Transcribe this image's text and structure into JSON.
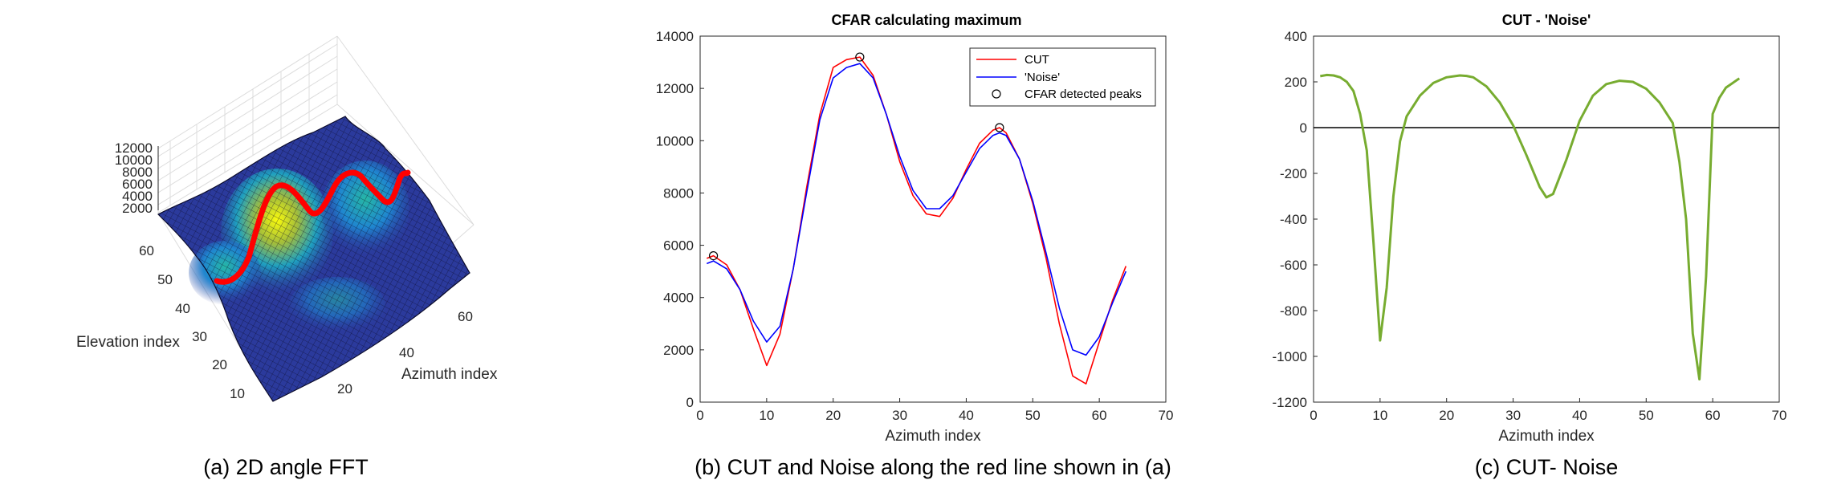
{
  "colors": {
    "cut": "#ff0000",
    "noise": "#0000ff",
    "diff": "#77ac30",
    "peak_marker": "#000000",
    "surface_low": "#352a87",
    "surface_mid": "#1fa0c0",
    "surface_high": "#f9fb0e",
    "red_line": "#ff0000"
  },
  "panel_a": {
    "caption": "(a) 2D angle FFT",
    "xlabel": "Azimuth index",
    "ylabel": "Elevation index",
    "z_ticks": [
      "12000",
      "10000",
      "8000",
      "6000",
      "4000",
      "2000"
    ],
    "y_ticks": [
      "60",
      "50",
      "40",
      "30",
      "20",
      "10"
    ],
    "x_ticks": [
      "20",
      "40",
      "60"
    ]
  },
  "panel_b": {
    "caption": "(b) CUT and Noise along the red line shown in (a)",
    "legend": {
      "cut": "CUT",
      "noise": "'Noise'",
      "peaks": "CFAR detected peaks"
    }
  },
  "panel_c": {
    "caption": "(c) CUT- Noise"
  },
  "chart_data": [
    {
      "type": "surface",
      "xlabel": "Azimuth index",
      "ylabel": "Elevation index",
      "x_ticks": [
        20,
        40,
        60
      ],
      "y_ticks": [
        10,
        20,
        30,
        40,
        50,
        60
      ],
      "z_ticks": [
        2000,
        4000,
        6000,
        8000,
        10000,
        12000
      ]
    },
    {
      "type": "line",
      "title": "CFAR calculating maximum",
      "xlabel": "Azimuth index",
      "ylabel": "",
      "xlim": [
        0,
        70
      ],
      "ylim": [
        0,
        14000
      ],
      "x_ticks": [
        0,
        10,
        20,
        30,
        40,
        50,
        60,
        70
      ],
      "y_ticks": [
        0,
        2000,
        4000,
        6000,
        8000,
        10000,
        12000,
        14000
      ],
      "legend_position": "top-right",
      "x": [
        1,
        2,
        4,
        6,
        8,
        10,
        12,
        14,
        16,
        18,
        20,
        22,
        24,
        26,
        28,
        30,
        32,
        34,
        36,
        38,
        40,
        42,
        44,
        45,
        46,
        48,
        50,
        52,
        54,
        56,
        58,
        60,
        62,
        64
      ],
      "series": [
        {
          "name": "CUT",
          "values": [
            5500,
            5600,
            5250,
            4300,
            2800,
            1400,
            2600,
            5100,
            8200,
            11000,
            12800,
            13100,
            13200,
            12500,
            11000,
            9200,
            7900,
            7200,
            7100,
            7800,
            8900,
            9900,
            10400,
            10500,
            10300,
            9300,
            7600,
            5500,
            3000,
            1000,
            700,
            2300,
            3900,
            5200
          ]
        },
        {
          "name": "'Noise'",
          "values": [
            5300,
            5400,
            5100,
            4300,
            3100,
            2300,
            2900,
            5100,
            8000,
            10800,
            12400,
            12800,
            12950,
            12400,
            11000,
            9400,
            8100,
            7400,
            7400,
            7900,
            8800,
            9700,
            10200,
            10300,
            10200,
            9300,
            7700,
            5700,
            3600,
            2000,
            1800,
            2500,
            3800,
            5000
          ]
        }
      ],
      "peaks": {
        "name": "CFAR detected peaks",
        "x": [
          2,
          24,
          45
        ],
        "y": [
          5600,
          13200,
          10500
        ]
      }
    },
    {
      "type": "line",
      "title": "CUT - 'Noise'",
      "xlabel": "Azimuth index",
      "ylabel": "",
      "xlim": [
        0,
        70
      ],
      "ylim": [
        -1200,
        400
      ],
      "x_ticks": [
        0,
        10,
        20,
        30,
        40,
        50,
        60,
        70
      ],
      "y_ticks": [
        -1200,
        -1000,
        -800,
        -600,
        -400,
        -200,
        0,
        200,
        400
      ],
      "reference_line": 0,
      "x": [
        1,
        2,
        3,
        4,
        5,
        6,
        7,
        8,
        9,
        10,
        11,
        12,
        13,
        14,
        16,
        18,
        20,
        22,
        23,
        24,
        26,
        28,
        30,
        32,
        34,
        35,
        36,
        38,
        40,
        42,
        44,
        46,
        48,
        50,
        52,
        54,
        55,
        56,
        57,
        58,
        59,
        60,
        61,
        62,
        64
      ],
      "values": [
        225,
        230,
        228,
        220,
        200,
        160,
        60,
        -100,
        -500,
        -930,
        -700,
        -300,
        -60,
        50,
        140,
        195,
        220,
        228,
        226,
        220,
        180,
        110,
        10,
        -120,
        -260,
        -305,
        -290,
        -140,
        30,
        140,
        190,
        205,
        200,
        170,
        110,
        20,
        -150,
        -400,
        -900,
        -1100,
        -650,
        60,
        130,
        175,
        215
      ]
    }
  ]
}
